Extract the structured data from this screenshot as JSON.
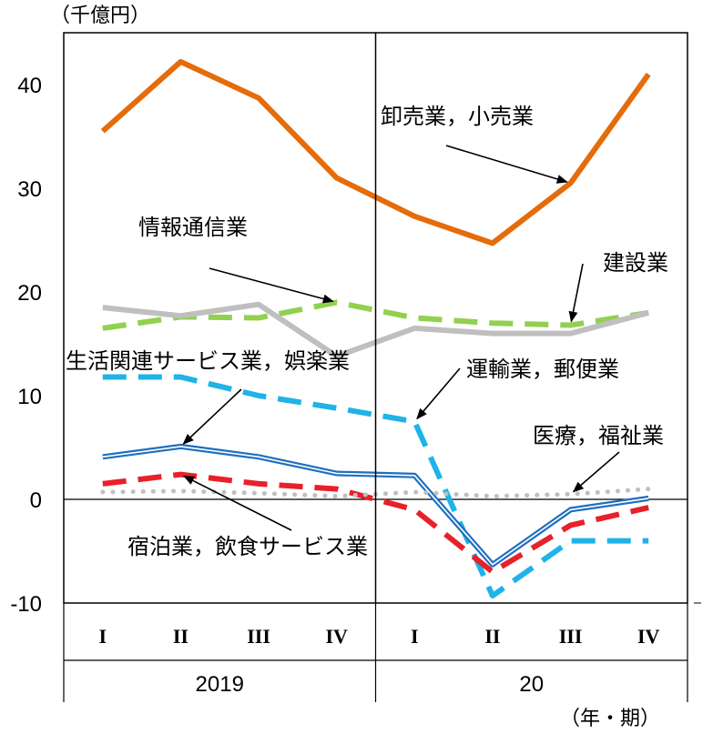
{
  "chart_data": {
    "type": "line",
    "y_unit": "（千億円）",
    "x_unit": "（年・期）",
    "ylim": [
      -10,
      45
    ],
    "yticks": [
      "40",
      "30",
      "20",
      "10",
      "0",
      "-10"
    ],
    "ytick_values": [
      40,
      30,
      20,
      10,
      0,
      -10
    ],
    "categories": [
      "I",
      "II",
      "III",
      "IV",
      "I",
      "II",
      "III",
      "IV"
    ],
    "years": [
      "2019",
      "20"
    ],
    "grid": false,
    "series": [
      {
        "name": "卸売業，小売業",
        "color": "#E46C0A",
        "style": "solid",
        "values": [
          35.5,
          42.2,
          38.7,
          31.0,
          27.3,
          24.7,
          30.5,
          41.0
        ]
      },
      {
        "name": "建設業",
        "color": "#92D050",
        "style": "dashed",
        "values": [
          16.5,
          17.6,
          17.5,
          19.0,
          17.5,
          17.0,
          16.8,
          18.0
        ]
      },
      {
        "name": "情報通信業",
        "color": "#BFBFBF",
        "style": "solid",
        "values": [
          18.5,
          17.7,
          18.8,
          13.8,
          16.5,
          16.0,
          16.0,
          18.0
        ]
      },
      {
        "name": "生活関連サービス業，娯楽業",
        "color": "#1FB3E8",
        "style": "dashed",
        "values": [
          11.8,
          11.8,
          10.0,
          8.8,
          7.5,
          -9.3,
          -4.0,
          -4.0
        ]
      },
      {
        "name": "運輸業，郵便業",
        "color": "#1F6FBF",
        "style": "double",
        "values": [
          4.1,
          5.1,
          4.1,
          2.5,
          2.3,
          -6.3,
          -1.0,
          0.1
        ]
      },
      {
        "name": "宿泊業，飲食サービス業",
        "color": "#E8202A",
        "style": "dashed",
        "values": [
          1.5,
          2.4,
          1.5,
          1.0,
          -1.0,
          -7.0,
          -2.5,
          -0.8
        ]
      },
      {
        "name": "医療，福祉業",
        "color": "#BFBFBF",
        "style": "dotted",
        "values": [
          0.7,
          0.8,
          0.6,
          0.3,
          0.7,
          0.3,
          0.5,
          1.0
        ]
      }
    ],
    "annotations": [
      {
        "text": "卸売業，小売業",
        "series": 0,
        "point": 6
      },
      {
        "text": "建設業",
        "series": 1,
        "point": 6
      },
      {
        "text": "情報通信業",
        "series": 1,
        "point": 3
      },
      {
        "text": "生活関連サービス業，娯楽業",
        "series": 4,
        "point": 1
      },
      {
        "text": "運輸業，郵便業",
        "series": 3,
        "point": 4
      },
      {
        "text": "医療，福祉業",
        "series": 6,
        "point": 6
      },
      {
        "text": "宿泊業，飲食サービス業",
        "series": 5,
        "point": 1
      }
    ]
  }
}
